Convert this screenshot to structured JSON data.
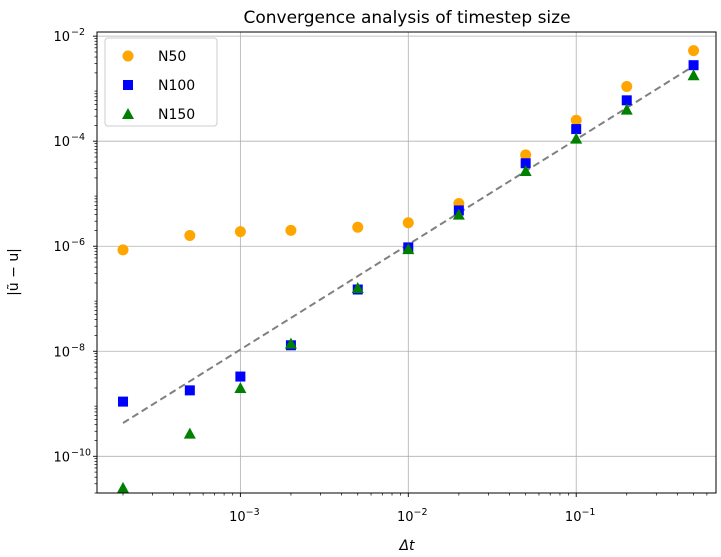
{
  "chart_data": {
    "type": "scatter",
    "title": "Convergence analysis of timestep size",
    "xlabel": "Δt",
    "ylabel": "|ũ − u|",
    "xscale": "log",
    "yscale": "log",
    "xlim": [
      0.00014,
      0.68
    ],
    "ylim": [
      2e-11,
      0.012
    ],
    "grid": true,
    "legend_position": "top-left",
    "x_ticks": [
      {
        "value": 0.001,
        "base": "10",
        "exp": "−3"
      },
      {
        "value": 0.01,
        "base": "10",
        "exp": "−2"
      },
      {
        "value": 0.1,
        "base": "10",
        "exp": "−1"
      }
    ],
    "y_ticks": [
      {
        "value": 1e-10,
        "base": "10",
        "exp": "−10"
      },
      {
        "value": 1e-08,
        "base": "10",
        "exp": "−8"
      },
      {
        "value": 1e-06,
        "base": "10",
        "exp": "−6"
      },
      {
        "value": 0.0001,
        "base": "10",
        "exp": "−4"
      },
      {
        "value": 0.01,
        "base": "10",
        "exp": "−2"
      }
    ],
    "x": [
      0.0002,
      0.0005,
      0.001,
      0.002,
      0.005,
      0.01,
      0.02,
      0.05,
      0.1,
      0.2,
      0.5
    ],
    "series": [
      {
        "name": "N50",
        "marker": "circle",
        "color": "#ffa500",
        "values": [
          8.5e-07,
          1.6e-06,
          1.9e-06,
          2e-06,
          2.3e-06,
          2.8e-06,
          6.5e-06,
          5.5e-05,
          0.00025,
          0.0011,
          0.0053
        ]
      },
      {
        "name": "N100",
        "marker": "square",
        "color": "#0000ff",
        "values": [
          1.1e-09,
          1.8e-09,
          3.3e-09,
          1.3e-08,
          1.5e-07,
          9.5e-07,
          4.8e-06,
          3.8e-05,
          0.00017,
          0.0006,
          0.0028
        ]
      },
      {
        "name": "N150",
        "marker": "triangle",
        "color": "#008000",
        "values": [
          2.5e-11,
          2.7e-10,
          2e-09,
          1.4e-08,
          1.6e-07,
          8.8e-07,
          4e-06,
          2.7e-05,
          0.000112,
          0.0004,
          0.0018
        ]
      }
    ],
    "reference_line": {
      "style": "dashed",
      "color": "#808080",
      "x": [
        0.0002,
        0.5
      ],
      "y": [
        4.3e-10,
        0.0027
      ]
    }
  }
}
